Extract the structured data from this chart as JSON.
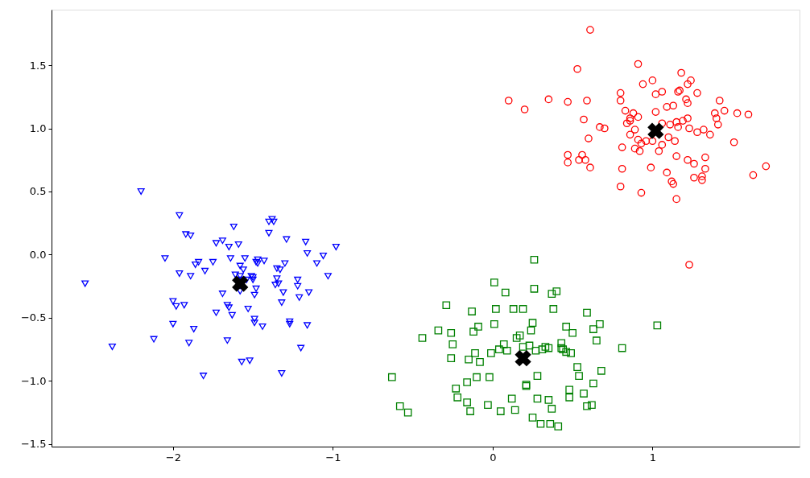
{
  "chart_data": {
    "type": "scatter",
    "xlim": [
      -2.76,
      1.92
    ],
    "ylim": [
      -1.52,
      1.94
    ],
    "xticks": [
      {
        "value": -2,
        "label": "−2"
      },
      {
        "value": -1,
        "label": "−1"
      },
      0,
      1
    ],
    "yticks": [
      {
        "value": -1.5,
        "label": "−1.5"
      },
      {
        "value": -1.0,
        "label": "−1.0"
      },
      {
        "value": -0.5,
        "label": "−0.5"
      },
      {
        "value": 0,
        "label": "0.0"
      },
      {
        "value": 0.5,
        "label": "0.5"
      },
      {
        "value": 1.0,
        "label": "1.0"
      },
      {
        "value": 1.5,
        "label": "1.5"
      }
    ],
    "grid": false,
    "series": [
      {
        "color": "#0000ff",
        "marker": "triangle",
        "x": [
          -2.55,
          -2.38,
          -2.2,
          -2.12,
          -2.05,
          -2.0,
          -2.0,
          -1.98,
          -1.96,
          -1.96,
          -1.93,
          -1.92,
          -1.9,
          -1.89,
          -1.89,
          -1.87,
          -1.86,
          -1.84,
          -1.81,
          -1.8,
          -1.75,
          -1.73,
          -1.73,
          -1.69,
          -1.69,
          -1.66,
          -1.66,
          -1.65,
          -1.65,
          -1.64,
          -1.63,
          -1.62,
          -1.61,
          -1.59,
          -1.58,
          -1.58,
          -1.58,
          -1.57,
          -1.57,
          -1.56,
          -1.55,
          -1.54,
          -1.53,
          -1.52,
          -1.51,
          -1.5,
          -1.5,
          -1.49,
          -1.49,
          -1.49,
          -1.48,
          -1.48,
          -1.47,
          -1.47,
          -1.44,
          -1.43,
          -1.4,
          -1.4,
          -1.38,
          -1.37,
          -1.36,
          -1.35,
          -1.35,
          -1.34,
          -1.33,
          -1.32,
          -1.32,
          -1.31,
          -1.3,
          -1.29,
          -1.27,
          -1.27,
          -1.22,
          -1.22,
          -1.21,
          -1.2,
          -1.17,
          -1.16,
          -1.16,
          -1.15,
          -1.1,
          -1.06,
          -1.03,
          -0.98
        ],
        "values": [
          -0.23,
          -0.73,
          0.5,
          -0.67,
          -0.03,
          -0.55,
          -0.37,
          -0.41,
          -0.15,
          0.31,
          -0.4,
          0.16,
          -0.7,
          -0.17,
          0.15,
          -0.59,
          -0.08,
          -0.06,
          -0.96,
          -0.13,
          -0.06,
          0.09,
          -0.46,
          0.11,
          -0.31,
          -0.4,
          -0.68,
          -0.42,
          0.06,
          -0.03,
          -0.48,
          0.22,
          -0.16,
          0.08,
          -0.17,
          -0.09,
          -0.29,
          -0.2,
          -0.85,
          -0.12,
          -0.03,
          -0.2,
          -0.43,
          -0.84,
          -0.17,
          -0.18,
          -0.2,
          -0.51,
          -0.54,
          -0.32,
          -0.27,
          -0.06,
          -0.04,
          -0.07,
          -0.57,
          -0.05,
          0.26,
          0.17,
          0.28,
          0.26,
          -0.24,
          -0.19,
          -0.11,
          -0.23,
          -0.12,
          -0.94,
          -0.38,
          -0.3,
          -0.07,
          0.12,
          -0.53,
          -0.55,
          -0.25,
          -0.2,
          -0.34,
          -0.74,
          0.1,
          0.01,
          -0.56,
          -0.3,
          -0.07,
          -0.01,
          -0.17,
          0.06
        ]
      },
      {
        "color": "#008000",
        "marker": "square",
        "x": [
          -0.63,
          -0.58,
          -0.53,
          -0.44,
          -0.34,
          -0.29,
          -0.26,
          -0.26,
          -0.25,
          -0.23,
          -0.22,
          -0.16,
          -0.16,
          -0.15,
          -0.14,
          -0.13,
          -0.12,
          -0.11,
          -0.1,
          -0.09,
          -0.08,
          -0.03,
          -0.02,
          -0.01,
          0.01,
          0.01,
          0.02,
          0.04,
          0.05,
          0.07,
          0.08,
          0.09,
          0.12,
          0.13,
          0.14,
          0.15,
          0.17,
          0.19,
          0.19,
          0.21,
          0.21,
          0.23,
          0.24,
          0.25,
          0.25,
          0.26,
          0.26,
          0.27,
          0.28,
          0.28,
          0.3,
          0.31,
          0.33,
          0.35,
          0.35,
          0.36,
          0.37,
          0.37,
          0.38,
          0.4,
          0.41,
          0.43,
          0.43,
          0.44,
          0.46,
          0.46,
          0.48,
          0.48,
          0.49,
          0.5,
          0.53,
          0.54,
          0.57,
          0.59,
          0.59,
          0.62,
          0.63,
          0.63,
          0.65,
          0.67,
          0.68,
          0.81,
          1.03
        ],
        "values": [
          -0.97,
          -1.2,
          -1.25,
          -0.66,
          -0.6,
          -0.4,
          -0.62,
          -0.82,
          -0.71,
          -1.06,
          -1.13,
          -1.01,
          -1.17,
          -0.83,
          -1.24,
          -0.45,
          -0.61,
          -0.78,
          -0.97,
          -0.57,
          -0.85,
          -1.19,
          -0.97,
          -0.78,
          -0.22,
          -0.55,
          -0.43,
          -0.75,
          -1.24,
          -0.71,
          -0.3,
          -0.76,
          -1.14,
          -0.43,
          -1.23,
          -0.66,
          -0.64,
          -0.43,
          -0.73,
          -1.03,
          -1.04,
          -0.72,
          -0.6,
          -0.54,
          -1.29,
          -0.04,
          -0.27,
          -0.76,
          -0.96,
          -1.14,
          -1.34,
          -0.75,
          -0.73,
          -0.74,
          -1.15,
          -1.34,
          -1.22,
          -0.31,
          -0.43,
          -0.29,
          -1.36,
          -0.74,
          -0.7,
          -0.75,
          -0.57,
          -0.77,
          -1.07,
          -1.13,
          -0.78,
          -0.62,
          -0.89,
          -0.96,
          -1.1,
          -1.2,
          -0.46,
          -1.19,
          -1.02,
          -0.59,
          -0.68,
          -0.55,
          -0.92,
          -0.74,
          -0.56
        ]
      },
      {
        "color": "#ff0000",
        "marker": "circle",
        "x": [
          0.61,
          0.53,
          0.91,
          0.1,
          0.2,
          0.35,
          0.47,
          0.59,
          0.8,
          0.8,
          0.94,
          1.0,
          1.02,
          1.06,
          1.18,
          1.22,
          1.24,
          1.16,
          1.17,
          1.28,
          1.21,
          1.22,
          1.13,
          1.09,
          1.02,
          1.42,
          1.45,
          1.53,
          1.6,
          1.39,
          1.4,
          1.41,
          1.32,
          1.36,
          1.28,
          1.23,
          1.22,
          1.19,
          1.15,
          1.16,
          1.11,
          1.06,
          1.1,
          1.14,
          1.06,
          1.04,
          1.0,
          0.96,
          0.93,
          0.92,
          0.89,
          0.91,
          0.86,
          0.89,
          0.84,
          0.86,
          0.86,
          0.88,
          0.91,
          0.83,
          1.51,
          1.33,
          1.33,
          1.31,
          1.31,
          1.26,
          1.26,
          1.22,
          1.15,
          1.63,
          1.71,
          1.09,
          1.12,
          1.13,
          1.15,
          1.23,
          0.99,
          0.93,
          0.8,
          0.81,
          0.81,
          0.6,
          0.57,
          0.67,
          0.7,
          0.47,
          0.47,
          0.56,
          0.54,
          0.58,
          0.61
        ],
        "values": [
          1.78,
          1.47,
          1.51,
          1.22,
          1.15,
          1.23,
          1.21,
          1.22,
          1.28,
          1.22,
          1.35,
          1.38,
          1.27,
          1.29,
          1.44,
          1.35,
          1.38,
          1.29,
          1.3,
          1.28,
          1.23,
          1.2,
          1.18,
          1.17,
          1.13,
          1.22,
          1.14,
          1.12,
          1.11,
          1.12,
          1.08,
          1.03,
          0.99,
          0.95,
          0.97,
          1.0,
          1.08,
          1.06,
          1.05,
          1.01,
          1.03,
          1.04,
          0.93,
          0.9,
          0.87,
          0.82,
          0.9,
          0.9,
          0.88,
          0.82,
          0.84,
          0.91,
          0.95,
          0.99,
          1.04,
          1.06,
          1.08,
          1.12,
          1.09,
          1.14,
          0.89,
          0.77,
          0.68,
          0.62,
          0.59,
          0.61,
          0.72,
          0.75,
          0.78,
          0.63,
          0.7,
          0.65,
          0.58,
          0.56,
          0.44,
          -0.08,
          0.69,
          0.49,
          0.54,
          0.68,
          0.85,
          0.92,
          1.07,
          1.01,
          1.0,
          0.79,
          0.73,
          0.79,
          0.75,
          0.75,
          0.69
        ]
      },
      {
        "color": "#000000",
        "marker": "cross",
        "x": [
          -1.58,
          0.19,
          1.02
        ],
        "values": [
          -0.23,
          -0.82,
          0.98
        ]
      }
    ]
  }
}
